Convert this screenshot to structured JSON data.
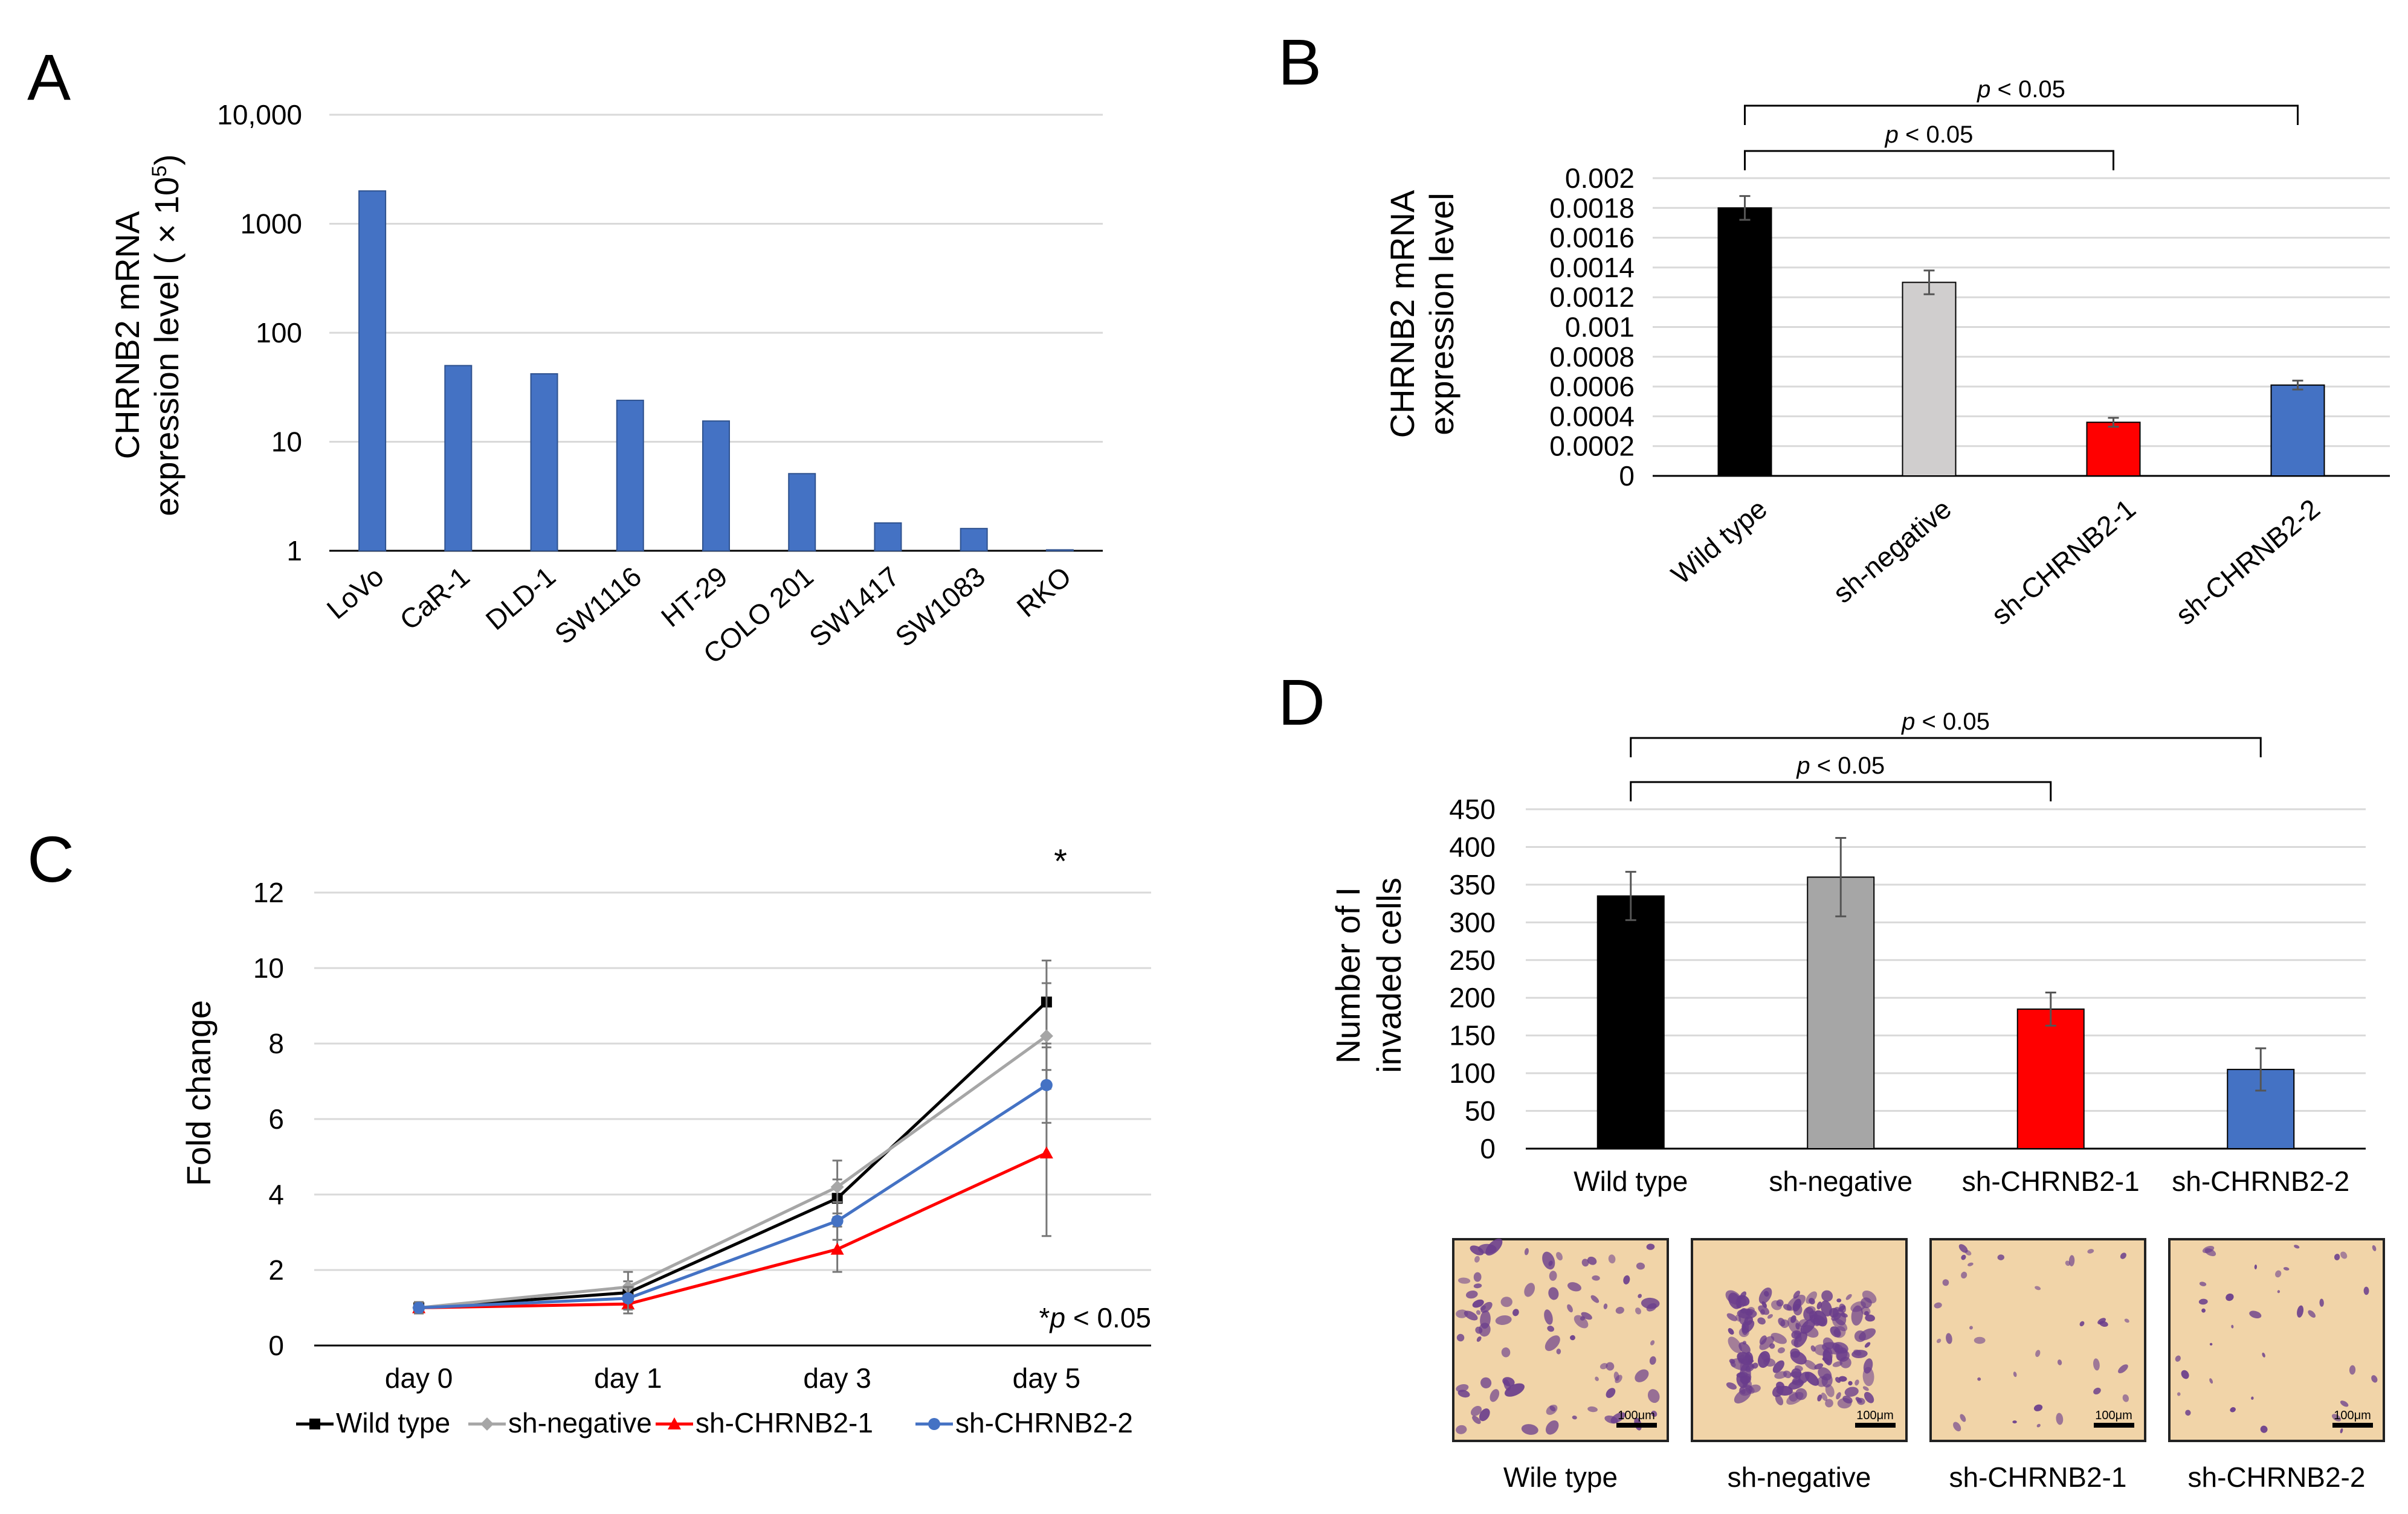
{
  "chart_data": [
    {
      "panel": "A",
      "type": "bar",
      "yscale": "log",
      "categories": [
        "LoVo",
        "CaR-1",
        "DLD-1",
        "SW1116",
        "HT-29",
        "COLO 201",
        "SW1417",
        "SW1083",
        "RKO"
      ],
      "values": [
        2000,
        50,
        42,
        24,
        15.5,
        5.1,
        1.8,
        1.6,
        1.02
      ],
      "ylim": [
        1,
        10000
      ],
      "yticks": [
        "1",
        "10",
        "100",
        "1000",
        "10,000"
      ],
      "ytick_values": [
        1,
        10,
        100,
        1000,
        10000
      ],
      "ylabel_line1": "CHRNB2 mRNA",
      "ylabel_line2": "expression level ( × 10",
      "ylabel_sup": "5",
      "ylabel_end": ")",
      "color": "#4472c4"
    },
    {
      "panel": "B",
      "type": "bar",
      "categories": [
        "Wild type",
        "sh-negative",
        "sh-CHRNB2-1",
        "sh-CHRNB2-2"
      ],
      "values": [
        0.0018,
        0.0013,
        0.00036,
        0.00061
      ],
      "errors": [
        8e-05,
        8e-05,
        3e-05,
        3e-05
      ],
      "colors": [
        "#000000",
        "#d0cece",
        "#ff0000",
        "#4472c4"
      ],
      "ylim": [
        0,
        0.002
      ],
      "yticks": [
        "0",
        "0.0002",
        "0.0004",
        "0.0006",
        "0.0008",
        "0.001",
        "0.0012",
        "0.0014",
        "0.0016",
        "0.0018",
        "0.002"
      ],
      "ylabel_line1": "CHRNB2 mRNA",
      "ylabel_line2": "expression level",
      "significance": [
        {
          "from": 0,
          "to": 2,
          "label_prefix": "p",
          "label_rest": " < 0.05"
        },
        {
          "from": 0,
          "to": 3,
          "label_prefix": "p",
          "label_rest": " < 0.05"
        }
      ]
    },
    {
      "panel": "C",
      "type": "line",
      "categories": [
        "day 0",
        "day 1",
        "day 3",
        "day 5"
      ],
      "series": [
        {
          "name": "Wild type",
          "values": [
            1.0,
            1.4,
            3.9,
            9.1
          ],
          "errors": [
            0.15,
            0.3,
            0.5,
            1.1
          ],
          "color": "#000000",
          "marker": "square"
        },
        {
          "name": "sh-negative",
          "values": [
            1.0,
            1.55,
            4.2,
            8.2
          ],
          "errors": [
            0.15,
            0.4,
            0.7,
            1.4
          ],
          "color": "#a6a6a6",
          "marker": "diamond"
        },
        {
          "name": "sh-CHRNB2-1",
          "values": [
            1.0,
            1.1,
            2.55,
            5.1
          ],
          "errors": [
            0.1,
            0.25,
            0.6,
            2.2
          ],
          "color": "#ff0000",
          "marker": "triangle"
        },
        {
          "name": "sh-CHRNB2-2",
          "values": [
            1.0,
            1.25,
            3.3,
            6.9
          ],
          "errors": [
            0.15,
            0.3,
            0.5,
            1.0
          ],
          "color": "#4472c4",
          "marker": "circle"
        }
      ],
      "ylim": [
        0,
        12
      ],
      "yticks": [
        "0",
        "2",
        "4",
        "6",
        "8",
        "10",
        "12"
      ],
      "ylabel": "Fold change",
      "star": "*",
      "note_star": "*",
      "note_p": "p",
      "note_rest": " < 0.05"
    },
    {
      "panel": "D",
      "type": "bar",
      "categories": [
        "Wild type",
        "sh-negative",
        "sh-CHRNB2-1",
        "sh-CHRNB2-2"
      ],
      "values": [
        335,
        360,
        185,
        105
      ],
      "errors": [
        32,
        52,
        22,
        28
      ],
      "colors": [
        "#000000",
        "#a6a6a6",
        "#ff0000",
        "#4472c4"
      ],
      "ylim": [
        0,
        450
      ],
      "yticks": [
        "0",
        "50",
        "100",
        "150",
        "200",
        "250",
        "300",
        "350",
        "400",
        "450"
      ],
      "ylabel_line1": "Number of I",
      "ylabel_line2": "invaded cells",
      "significance": [
        {
          "from": 0,
          "to": 2,
          "label_prefix": "p",
          "label_rest": " < 0.05"
        },
        {
          "from": 0,
          "to": 3,
          "label_prefix": "p",
          "label_rest": " < 0.05"
        }
      ]
    }
  ],
  "panel_letters": [
    "A",
    "B",
    "C",
    "D"
  ],
  "micrographs": [
    {
      "caption": "Wile type",
      "scale_label": "100μm",
      "density": "medium"
    },
    {
      "caption": "sh-negative",
      "scale_label": "100μm",
      "density": "high"
    },
    {
      "caption": "sh-CHRNB2-1",
      "scale_label": "100μm",
      "density": "low"
    },
    {
      "caption": "sh-CHRNB2-2",
      "scale_label": "100μm",
      "density": "low"
    }
  ],
  "micrograph_colors": {
    "background": "#f1d4a8",
    "cell": "#6a3d8c",
    "border": "#222222"
  }
}
